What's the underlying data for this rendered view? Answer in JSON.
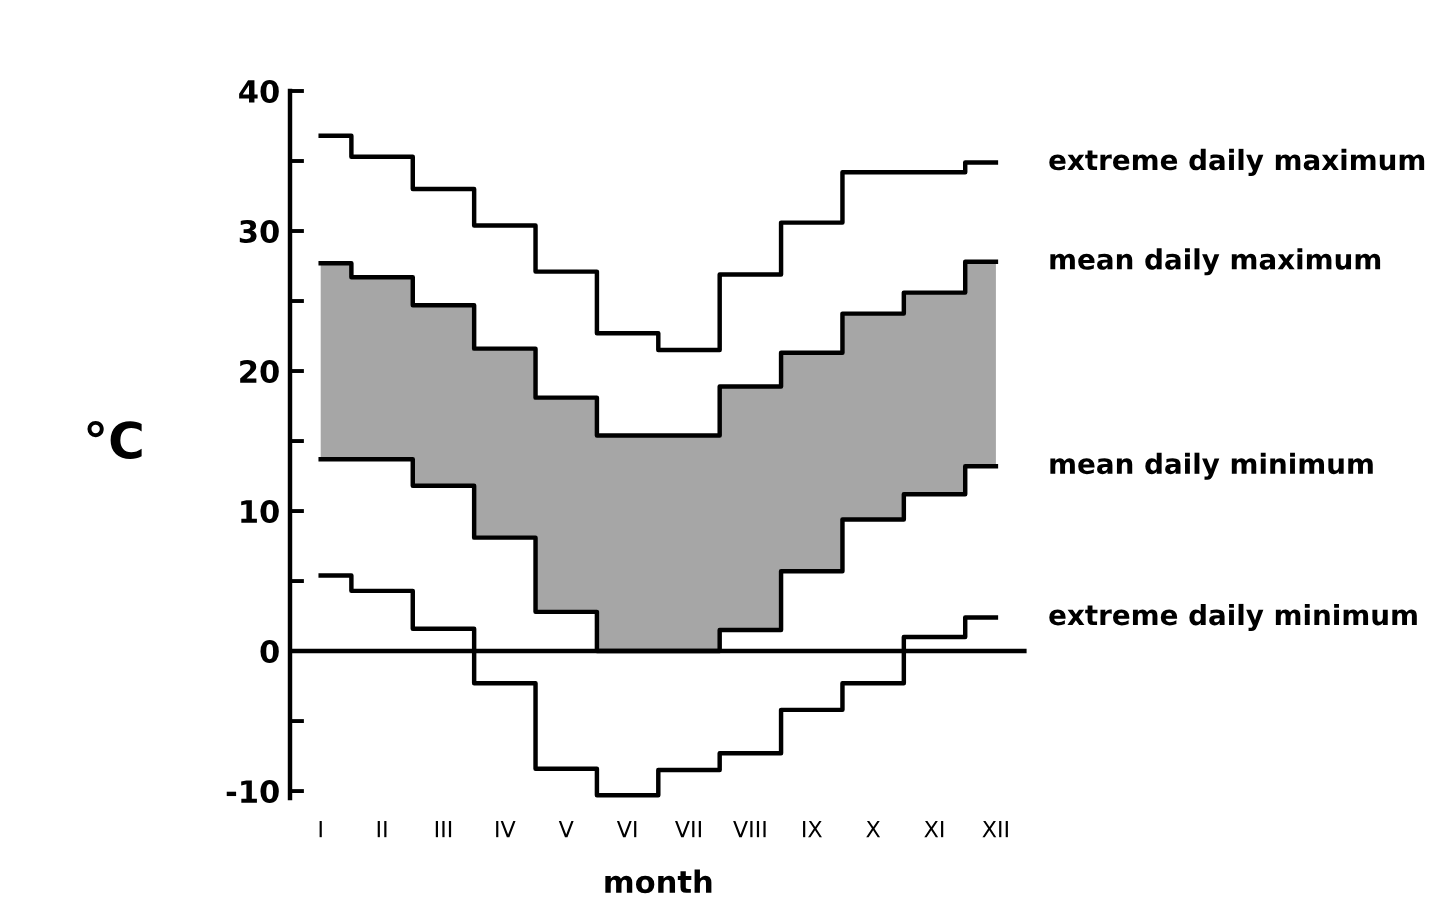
{
  "chart_data": {
    "type": "step",
    "xlabel": "month",
    "ylabel": "°C",
    "categories": [
      "I",
      "II",
      "III",
      "IV",
      "V",
      "VI",
      "VII",
      "VIII",
      "IX",
      "X",
      "XI",
      "XII"
    ],
    "series": [
      {
        "name": "extreme daily maximum",
        "color": "#000000",
        "values": [
          36.8,
          35.3,
          33.0,
          30.4,
          27.1,
          22.7,
          21.5,
          26.9,
          30.6,
          34.2,
          34.2,
          34.9
        ]
      },
      {
        "name": "mean daily maximum",
        "color": "#000000",
        "values": [
          27.7,
          26.7,
          24.7,
          21.6,
          18.1,
          15.4,
          15.4,
          18.9,
          21.3,
          24.1,
          25.6,
          27.8
        ],
        "lower": [
          13.7,
          13.7,
          11.8,
          8.1,
          2.8,
          0,
          0,
          1.5,
          5.7,
          9.4,
          11.2,
          13.2
        ],
        "upper": [
          27.7,
          26.7,
          24.7,
          21.6,
          18.1,
          15.4,
          15.4,
          18.9,
          21.3,
          24.1,
          25.6,
          27.8
        ]
      },
      {
        "name": "mean daily minimum",
        "color": "#000000",
        "values": [
          13.7,
          13.7,
          11.8,
          8.1,
          2.8,
          0,
          0,
          1.5,
          5.7,
          9.4,
          11.2,
          13.2
        ]
      },
      {
        "name": "extreme daily minimum",
        "color": "#000000",
        "values": [
          5.4,
          4.3,
          1.6,
          -2.3,
          -8.4,
          -10.3,
          -8.5,
          -7.3,
          -4.2,
          -2.3,
          1.0,
          2.4
        ]
      }
    ],
    "ylim": [
      -10.5,
      40
    ],
    "yticks": [
      -10,
      {
        "value": -5,
        "label": null
      },
      0,
      {
        "value": 5,
        "label": null
      },
      10,
      {
        "value": 15,
        "label": null
      },
      20,
      {
        "value": 25,
        "label": null
      },
      30,
      {
        "value": 35,
        "label": null
      },
      40
    ],
    "ref_lines": [
      {
        "axis": "y",
        "value": 0,
        "label": null,
        "color": "#000000"
      }
    ],
    "grid": false,
    "legend": false
  }
}
